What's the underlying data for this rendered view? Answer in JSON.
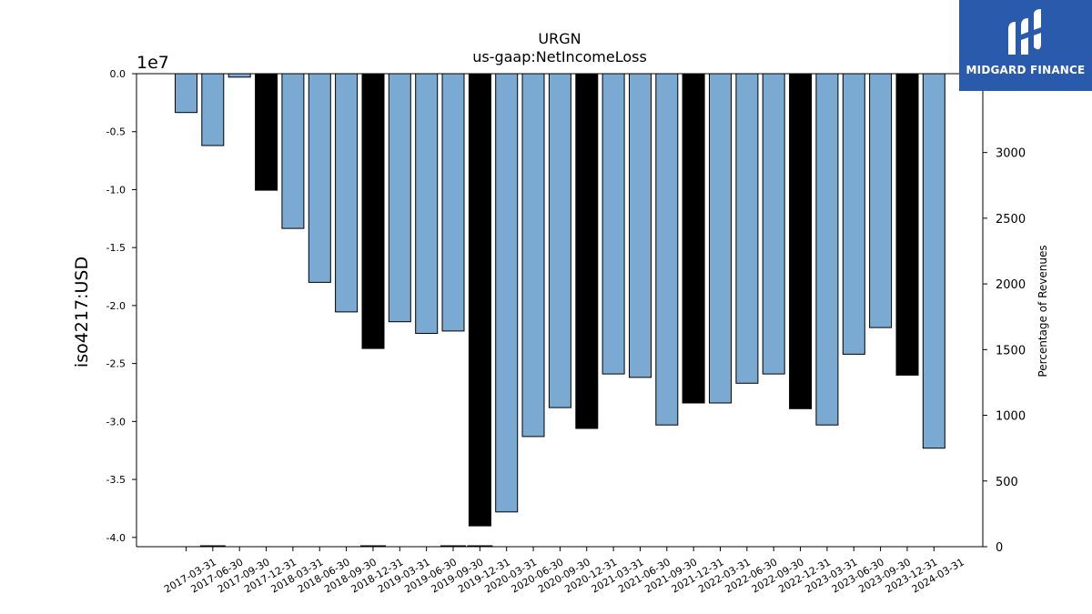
{
  "chart_data": {
    "type": "bar",
    "title": "URGN",
    "subtitle": "us-gaap:NetIncomeLoss",
    "ylabel": "iso4217:USD",
    "y_exponent_label": "1e7",
    "y2label": "Percentage of Revenues",
    "ylim": [
      -4.08,
      0
    ],
    "y2lim": [
      0,
      3600
    ],
    "yticks": [
      "0.0",
      "-0.5",
      "-1.0",
      "-1.5",
      "-2.0",
      "-2.5",
      "-3.0",
      "-3.5",
      "-4.0"
    ],
    "y2ticks": [
      "0",
      "500",
      "1000",
      "1500",
      "2000",
      "2500",
      "3000"
    ],
    "grid": false,
    "categories": [
      "2017-03-31",
      "2017-06-30",
      "2017-09-30",
      "2017-12-31",
      "2018-03-31",
      "2018-06-30",
      "2018-09-30",
      "2018-12-31",
      "2019-03-31",
      "2019-06-30",
      "2019-09-30",
      "2019-12-31",
      "2020-03-31",
      "2020-06-30",
      "2020-09-30",
      "2020-12-31",
      "2021-03-31",
      "2021-06-30",
      "2021-09-30",
      "2021-12-31",
      "2022-03-31",
      "2022-06-30",
      "2022-09-30",
      "2022-12-31",
      "2023-03-31",
      "2023-06-30",
      "2023-09-30",
      "2023-12-31",
      "2024-03-31"
    ],
    "values": [
      -3.35,
      -6.2,
      -0.3,
      -10.05,
      -13.35,
      -18.0,
      -20.55,
      -23.7,
      -21.4,
      -22.4,
      -22.2,
      -39.0,
      -37.8,
      -31.3,
      -28.8,
      -30.6,
      -25.9,
      -26.2,
      -30.3,
      -28.4,
      -28.4,
      -26.7,
      -25.9,
      -28.9,
      -30.3,
      -24.2,
      -21.9,
      -26.0,
      -32.3
    ],
    "value_units": "millions USD",
    "bar_kind": [
      "quarter",
      "quarter",
      "quarter",
      "year-end",
      "quarter",
      "quarter",
      "quarter",
      "year-end",
      "quarter",
      "quarter",
      "quarter",
      "year-end",
      "quarter",
      "quarter",
      "quarter",
      "year-end",
      "quarter",
      "quarter",
      "quarter",
      "year-end",
      "quarter",
      "quarter",
      "quarter",
      "year-end",
      "quarter",
      "quarter",
      "quarter",
      "year-end",
      "quarter"
    ],
    "colors": {
      "quarter": "#7aaad2",
      "year-end": "#000000",
      "edge": "#000000"
    },
    "pct_of_revenues": [
      {
        "category": "2017-06-30",
        "value": 5
      },
      {
        "category": "2018-12-31",
        "value": 5
      },
      {
        "category": "2019-09-30",
        "value": 5
      },
      {
        "category": "2019-12-31",
        "value": 5
      }
    ]
  },
  "logo": {
    "text": "MIDGARD FINANCE",
    "icon": "midgard-logo-icon",
    "background": "#2a5aab"
  }
}
